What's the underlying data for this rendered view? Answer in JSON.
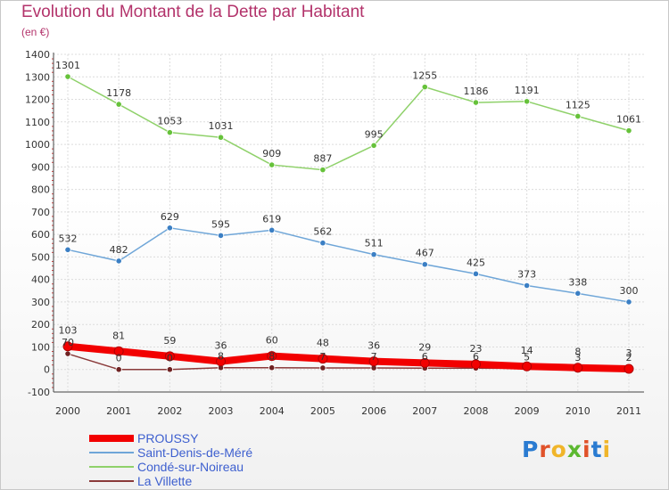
{
  "title": "Evolution du Montant de la Dette par Habitant",
  "unit": "(en €)",
  "logo": "Proxiti",
  "chart_data": {
    "type": "line",
    "title": "Evolution du Montant de la Dette par Habitant",
    "ylabel": "(en €)",
    "xlabel": "",
    "x": [
      "2000",
      "2001",
      "2002",
      "2003",
      "2004",
      "2005",
      "2006",
      "2007",
      "2008",
      "2009",
      "2010",
      "2011"
    ],
    "ylim": [
      -100,
      1400
    ],
    "yticks": [
      -100,
      0,
      100,
      200,
      300,
      400,
      500,
      600,
      700,
      800,
      900,
      1000,
      1100,
      1200,
      1300,
      1400
    ],
    "grid": true,
    "legend": "bottom-left",
    "series": [
      {
        "name": "Condé-sur-Noireau",
        "color": "#8fd16a",
        "marker": "#66c23a",
        "values": [
          1301,
          1178,
          1053,
          1031,
          909,
          887,
          995,
          1255,
          1186,
          1191,
          1125,
          1061
        ],
        "labels": [
          "1301",
          "1178",
          "1053",
          "1031",
          "909",
          "887",
          "995",
          "1255",
          "1186",
          "1191",
          "1125",
          "1061"
        ]
      },
      {
        "name": "Saint-Denis-de-Méré",
        "color": "#6fa6d8",
        "marker": "#3b7fc4",
        "values": [
          532,
          482,
          629,
          595,
          619,
          562,
          511,
          467,
          425,
          373,
          338,
          300
        ],
        "labels": [
          "532",
          "482",
          "629",
          "595",
          "619",
          "562",
          "511",
          "467",
          "425",
          "373",
          "338",
          "300"
        ]
      },
      {
        "name": "La Villette",
        "color": "#8a3a3a",
        "marker": "#6e2222",
        "values": [
          70,
          0,
          0,
          8,
          8,
          7,
          7,
          6,
          6,
          5,
          3,
          2
        ],
        "labels": [
          "70",
          "0",
          "0",
          "8",
          "8",
          "7",
          "7",
          "6",
          "6",
          "5",
          "3",
          "2"
        ]
      },
      {
        "name": "PROUSSY",
        "color": "#f20000",
        "marker": "#f20000",
        "values": [
          103,
          81,
          59,
          36,
          60,
          48,
          36,
          29,
          23,
          14,
          8,
          3
        ],
        "labels": [
          "103",
          "81",
          "59",
          "36",
          "60",
          "48",
          "36",
          "29",
          "23",
          "14",
          "8",
          "3"
        ]
      }
    ]
  }
}
